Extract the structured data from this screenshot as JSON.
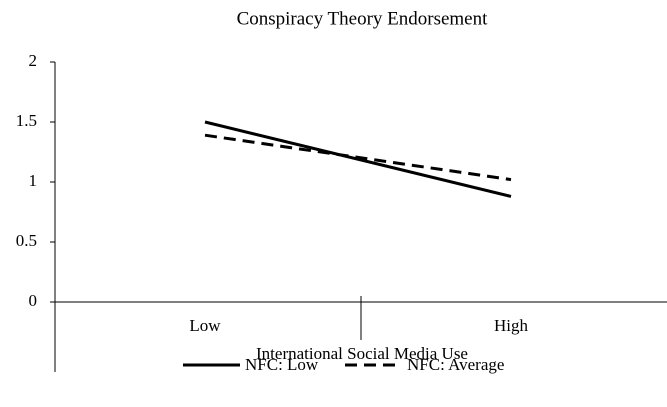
{
  "chart_data": {
    "type": "line",
    "title": "Conspiracy Theory Endorsement",
    "x_label": "International Social Media Use",
    "categories": [
      "Low",
      "High"
    ],
    "series": [
      {
        "name": "NFC: Low",
        "color": "#000000",
        "dashed": false,
        "values": [
          1.5,
          0.88
        ]
      },
      {
        "name": "NFC: Average",
        "color": "#000000",
        "dashed": true,
        "values": [
          1.39,
          1.02
        ]
      }
    ],
    "ylim": [
      0,
      2
    ],
    "yticks": [
      0,
      0.5,
      1,
      1.5,
      2
    ],
    "grid": false,
    "legend": "bottom"
  }
}
